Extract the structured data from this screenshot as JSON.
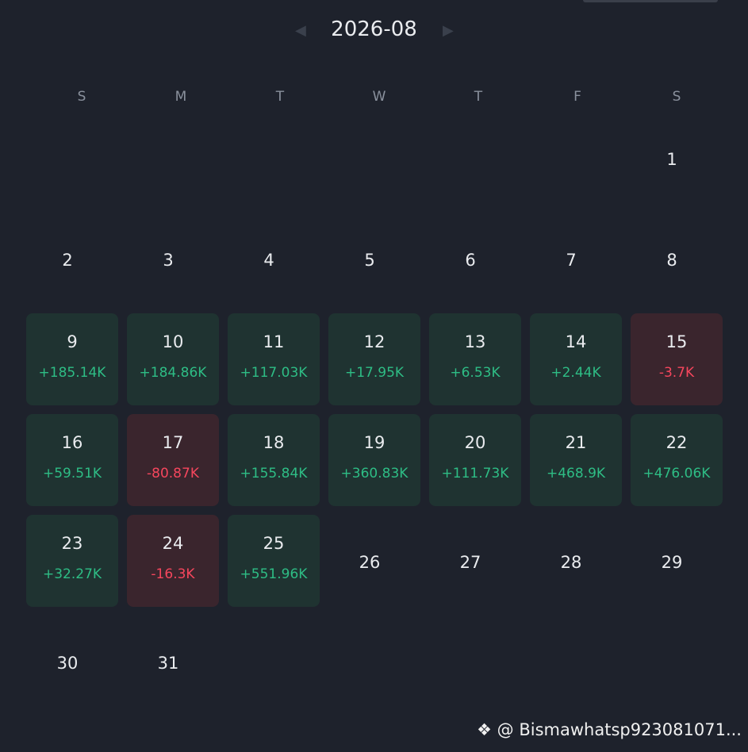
{
  "header": {
    "month": "2026-08"
  },
  "weekdays": [
    "S",
    "M",
    "T",
    "W",
    "T",
    "F",
    "S"
  ],
  "weeks": [
    [
      null,
      null,
      null,
      null,
      null,
      null,
      {
        "day": 1
      }
    ],
    [
      {
        "day": 2
      },
      {
        "day": 3
      },
      {
        "day": 4
      },
      {
        "day": 5
      },
      {
        "day": 6
      },
      {
        "day": 7
      },
      {
        "day": 8
      }
    ],
    [
      {
        "day": 9,
        "pnl": "+185.14K"
      },
      {
        "day": 10,
        "pnl": "+184.86K"
      },
      {
        "day": 11,
        "pnl": "+117.03K"
      },
      {
        "day": 12,
        "pnl": "+17.95K"
      },
      {
        "day": 13,
        "pnl": "+6.53K"
      },
      {
        "day": 14,
        "pnl": "+2.44K"
      },
      {
        "day": 15,
        "pnl": "-3.7K"
      }
    ],
    [
      {
        "day": 16,
        "pnl": "+59.51K"
      },
      {
        "day": 17,
        "pnl": "-80.87K"
      },
      {
        "day": 18,
        "pnl": "+155.84K"
      },
      {
        "day": 19,
        "pnl": "+360.83K"
      },
      {
        "day": 20,
        "pnl": "+111.73K"
      },
      {
        "day": 21,
        "pnl": "+468.9K"
      },
      {
        "day": 22,
        "pnl": "+476.06K"
      }
    ],
    [
      {
        "day": 23,
        "pnl": "+32.27K"
      },
      {
        "day": 24,
        "pnl": "-16.3K"
      },
      {
        "day": 25,
        "pnl": "+551.96K"
      },
      {
        "day": 26
      },
      {
        "day": 27
      },
      {
        "day": 28
      },
      {
        "day": 29
      }
    ],
    [
      {
        "day": 30
      },
      {
        "day": 31
      },
      null,
      null,
      null,
      null,
      null
    ]
  ],
  "watermark": "@ Bismawhatsp923081071..."
}
